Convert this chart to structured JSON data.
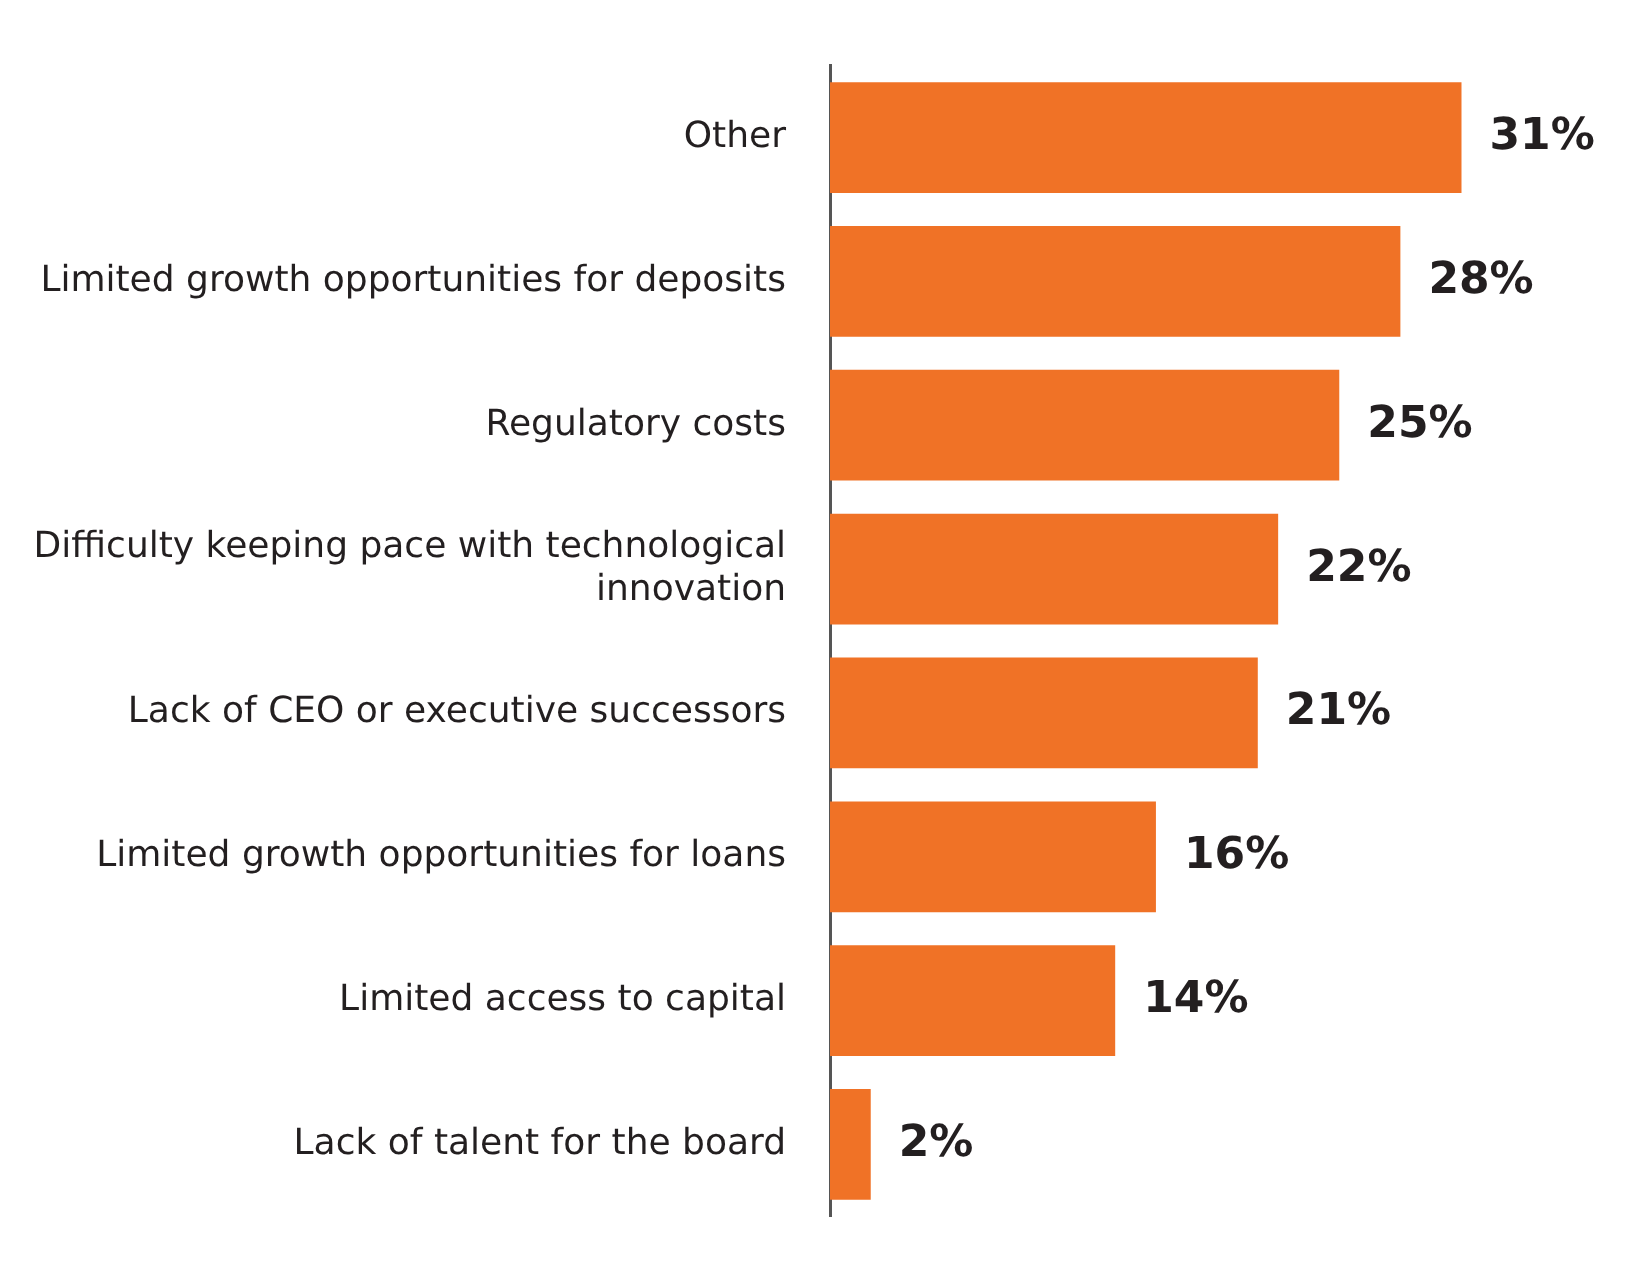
{
  "chart_data": {
    "type": "bar",
    "orientation": "horizontal",
    "categories": [
      "Other",
      "Limited growth opportunities for deposits",
      "Regulatory costs",
      "Difficulty keeping pace with technological innovation",
      "Lack of CEO or executive successors",
      "Limited growth opportunities for loans",
      "Limited access to capital",
      "Lack of talent for the board"
    ],
    "values": [
      31,
      28,
      25,
      22,
      21,
      16,
      14,
      2
    ],
    "value_labels": [
      "31%",
      "28%",
      "25%",
      "22%",
      "21%",
      "16%",
      "14%",
      "2%"
    ],
    "color": "#f07226",
    "grid": false,
    "legend": false
  }
}
